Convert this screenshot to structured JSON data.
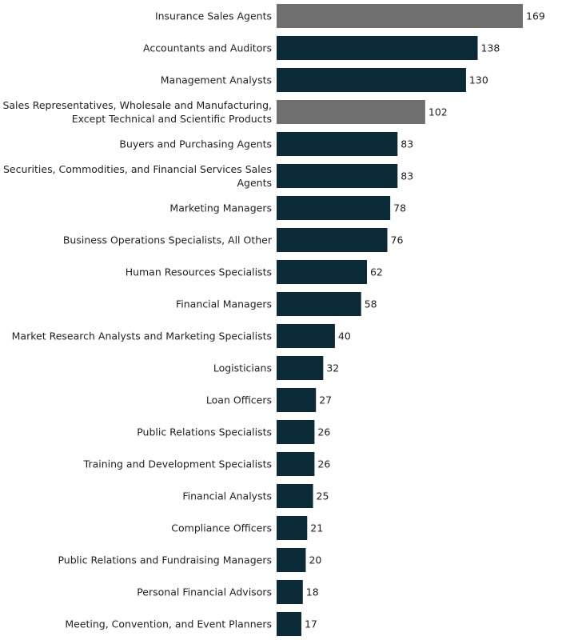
{
  "chart_data": {
    "type": "bar",
    "orientation": "horizontal",
    "title": "",
    "xlabel": "",
    "ylabel": "",
    "grid": false,
    "legend": "none",
    "xlim": [
      0,
      169
    ],
    "colors": {
      "default": "#0a2a38",
      "highlight": "#707070"
    },
    "categories": [
      [
        "Insurance Sales Agents"
      ],
      [
        "Accountants and Auditors"
      ],
      [
        "Management Analysts"
      ],
      [
        "Sales Representatives, Wholesale and Manufacturing,",
        "Except Technical and Scientific Products"
      ],
      [
        "Buyers and Purchasing Agents"
      ],
      [
        "Securities, Commodities, and Financial Services Sales",
        "Agents"
      ],
      [
        "Marketing Managers"
      ],
      [
        "Business Operations Specialists, All Other"
      ],
      [
        "Human Resources Specialists"
      ],
      [
        "Financial Managers"
      ],
      [
        "Market Research Analysts and Marketing Specialists"
      ],
      [
        "Logisticians"
      ],
      [
        "Loan Officers"
      ],
      [
        "Public Relations Specialists"
      ],
      [
        "Training and Development Specialists"
      ],
      [
        "Financial Analysts"
      ],
      [
        "Compliance Officers"
      ],
      [
        "Public Relations and Fundraising Managers"
      ],
      [
        "Personal Financial Advisors"
      ],
      [
        "Meeting, Convention, and Event Planners"
      ]
    ],
    "values": [
      169,
      138,
      130,
      102,
      83,
      83,
      78,
      76,
      62,
      58,
      40,
      32,
      27,
      26,
      26,
      25,
      21,
      20,
      18,
      17
    ],
    "value_labels": [
      "169",
      "138",
      "130",
      "102",
      "83",
      "83",
      "78",
      "76",
      "62",
      "58",
      "40",
      "32",
      "27",
      "26",
      "26",
      "25",
      "21",
      "20",
      "18",
      "17"
    ],
    "highlighted": [
      true,
      false,
      false,
      true,
      false,
      false,
      false,
      false,
      false,
      false,
      false,
      false,
      false,
      false,
      false,
      false,
      false,
      false,
      false,
      false
    ]
  }
}
